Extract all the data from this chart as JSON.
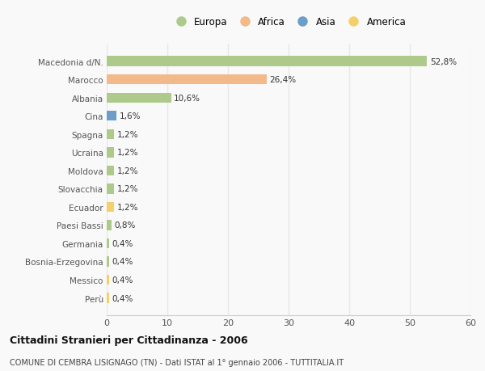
{
  "categories": [
    "Macedonia d/N.",
    "Marocco",
    "Albania",
    "Cina",
    "Spagna",
    "Ucraina",
    "Moldova",
    "Slovacchia",
    "Ecuador",
    "Paesi Bassi",
    "Germania",
    "Bosnia-Erzegovina",
    "Messico",
    "Perù"
  ],
  "values": [
    52.8,
    26.4,
    10.6,
    1.6,
    1.2,
    1.2,
    1.2,
    1.2,
    1.2,
    0.8,
    0.4,
    0.4,
    0.4,
    0.4
  ],
  "labels": [
    "52,8%",
    "26,4%",
    "10,6%",
    "1,6%",
    "1,2%",
    "1,2%",
    "1,2%",
    "1,2%",
    "1,2%",
    "0,8%",
    "0,4%",
    "0,4%",
    "0,4%",
    "0,4%"
  ],
  "continents": [
    "Europa",
    "Africa",
    "Europa",
    "Asia",
    "Europa",
    "Europa",
    "Europa",
    "Europa",
    "America",
    "Europa",
    "Europa",
    "Europa",
    "America",
    "America"
  ],
  "colors": {
    "Europa": "#aeca8b",
    "Africa": "#f2b98a",
    "Asia": "#6b9ec8",
    "America": "#f5d06a"
  },
  "legend_labels": [
    "Europa",
    "Africa",
    "Asia",
    "America"
  ],
  "legend_colors": [
    "#aeca8b",
    "#f2b98a",
    "#6b9ec8",
    "#f5d06a"
  ],
  "title": "Cittadini Stranieri per Cittadinanza - 2006",
  "subtitle": "COMUNE DI CEMBRA LISIGNAGO (TN) - Dati ISTAT al 1° gennaio 2006 - TUTTITALIA.IT",
  "xlim": [
    0,
    60
  ],
  "xticks": [
    0,
    10,
    20,
    30,
    40,
    50,
    60
  ],
  "background_color": "#f9f9f9",
  "grid_color": "#e8e8e8",
  "bar_height": 0.55
}
